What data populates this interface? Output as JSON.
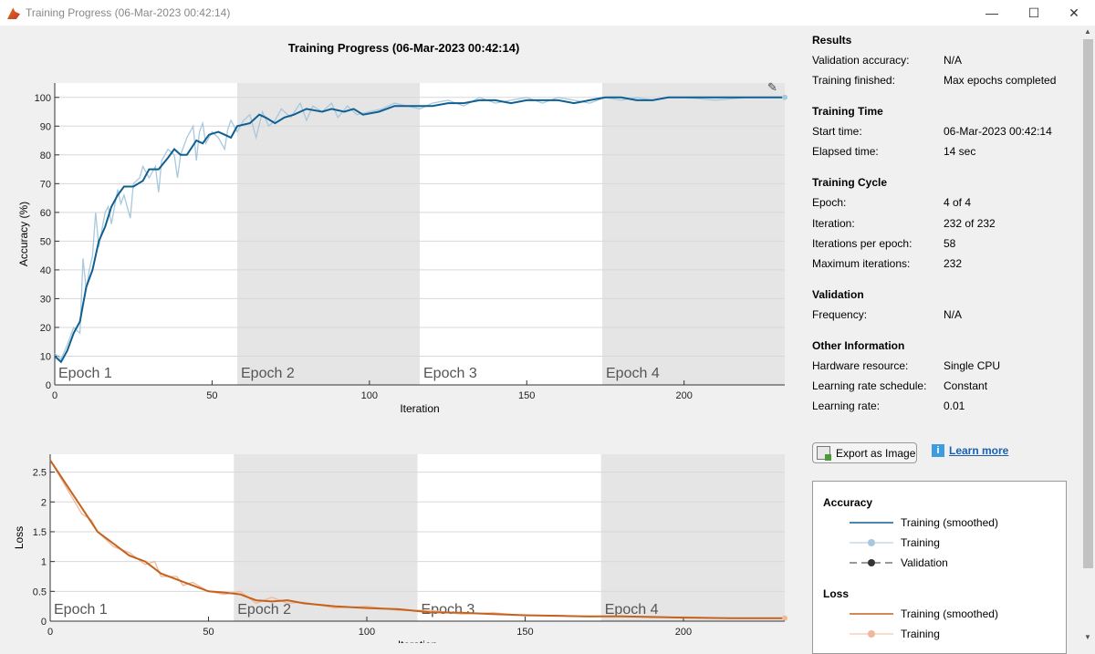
{
  "window": {
    "title": "Training Progress (06-Mar-2023 00:42:14)",
    "minimize": "—",
    "maximize": "☐",
    "close": "✕"
  },
  "chart_title": "Training Progress (06-Mar-2023 00:42:14)",
  "colors": {
    "acc_smoothed": "#0f5f92",
    "acc_raw": "#a8c8dc",
    "loss_smoothed": "#c4621e",
    "loss_raw": "#f0b89a",
    "epoch_shade": "#e5e5e5"
  },
  "chart_data": [
    {
      "type": "line",
      "ylabel": "Accuracy (%)",
      "xlabel": "Iteration",
      "xlim": [
        0,
        232
      ],
      "ylim": [
        0,
        105
      ],
      "xticks": [
        0,
        50,
        100,
        150,
        200
      ],
      "yticks": [
        0,
        10,
        20,
        30,
        40,
        50,
        60,
        70,
        80,
        90,
        100
      ],
      "grid": true,
      "epochs": [
        {
          "label": "Epoch 1",
          "start": 0,
          "end": 58
        },
        {
          "label": "Epoch 2",
          "start": 58,
          "end": 116
        },
        {
          "label": "Epoch 3",
          "start": 116,
          "end": 174
        },
        {
          "label": "Epoch 4",
          "start": 174,
          "end": 232
        }
      ],
      "series": [
        {
          "name": "Training (smoothed)",
          "x": [
            0,
            2,
            4,
            6,
            8,
            10,
            12,
            14,
            16,
            18,
            20,
            22,
            25,
            28,
            30,
            33,
            36,
            38,
            40,
            42,
            45,
            47,
            49,
            52,
            54,
            56,
            58,
            62,
            65,
            67,
            70,
            73,
            76,
            80,
            85,
            88,
            92,
            95,
            98,
            103,
            108,
            112,
            116,
            120,
            125,
            130,
            135,
            140,
            145,
            150,
            155,
            160,
            165,
            170,
            175,
            180,
            185,
            190,
            195,
            200,
            210,
            220,
            232
          ],
          "y": [
            10,
            8,
            12,
            18,
            22,
            34,
            40,
            50,
            55,
            62,
            66,
            69,
            69,
            71,
            75,
            75,
            79,
            82,
            80,
            80,
            85,
            84,
            87,
            88,
            87,
            86,
            90,
            91,
            94,
            93,
            91,
            93,
            94,
            96,
            95,
            96,
            95,
            96,
            94,
            95,
            97,
            97,
            97,
            97,
            98,
            98,
            99,
            99,
            98,
            99,
            99,
            99,
            98,
            99,
            100,
            100,
            99,
            99,
            100,
            100,
            100,
            100,
            100
          ]
        },
        {
          "name": "Training",
          "x": [
            0,
            2,
            4,
            6,
            8,
            9,
            10,
            11,
            12,
            13,
            14,
            15,
            16,
            17,
            18,
            20,
            21,
            22,
            24,
            25,
            27,
            28,
            30,
            32,
            33,
            34,
            36,
            38,
            39,
            40,
            42,
            44,
            45,
            46,
            47,
            48,
            50,
            52,
            54,
            55,
            56,
            58,
            60,
            62,
            64,
            66,
            68,
            70,
            72,
            75,
            78,
            80,
            82,
            85,
            88,
            90,
            93,
            96,
            100,
            104,
            108,
            112,
            116,
            120,
            125,
            130,
            135,
            140,
            145,
            150,
            155,
            160,
            165,
            170,
            175,
            180,
            185,
            190,
            195,
            200,
            210,
            220,
            232
          ],
          "y": [
            11,
            9,
            14,
            20,
            18,
            44,
            33,
            40,
            45,
            60,
            48,
            54,
            60,
            62,
            56,
            68,
            63,
            66,
            58,
            70,
            72,
            76,
            72,
            76,
            67,
            78,
            82,
            80,
            72,
            80,
            86,
            90,
            78,
            88,
            91,
            84,
            88,
            86,
            82,
            89,
            92,
            88,
            92,
            94,
            86,
            95,
            90,
            92,
            96,
            93,
            98,
            92,
            97,
            95,
            98,
            93,
            97,
            94,
            95,
            96,
            98,
            97,
            96,
            98,
            99,
            97,
            100,
            98,
            99,
            100,
            98,
            100,
            99,
            98,
            100,
            99,
            100,
            99,
            100,
            100,
            99,
            100,
            100
          ]
        }
      ]
    },
    {
      "type": "line",
      "ylabel": "Loss",
      "xlabel": "Iteration",
      "xlim": [
        0,
        232
      ],
      "ylim": [
        0,
        2.8
      ],
      "xticks": [
        0,
        50,
        100,
        150,
        200
      ],
      "yticks": [
        0,
        0.5,
        1,
        1.5,
        2,
        2.5
      ],
      "grid": true,
      "epochs": [
        {
          "label": "Epoch 1",
          "start": 0,
          "end": 58
        },
        {
          "label": "Epoch 2",
          "start": 58,
          "end": 116
        },
        {
          "label": "Epoch 3",
          "start": 116,
          "end": 174
        },
        {
          "label": "Epoch 4",
          "start": 174,
          "end": 232
        }
      ],
      "series": [
        {
          "name": "Training (smoothed)",
          "x": [
            0,
            5,
            10,
            15,
            20,
            25,
            30,
            35,
            40,
            45,
            50,
            55,
            60,
            65,
            70,
            75,
            80,
            90,
            100,
            110,
            120,
            130,
            140,
            150,
            160,
            170,
            180,
            190,
            200,
            215,
            232
          ],
          "y": [
            2.7,
            2.3,
            1.9,
            1.5,
            1.3,
            1.1,
            1.0,
            0.8,
            0.7,
            0.6,
            0.5,
            0.48,
            0.45,
            0.35,
            0.33,
            0.35,
            0.3,
            0.25,
            0.22,
            0.2,
            0.15,
            0.14,
            0.12,
            0.1,
            0.09,
            0.08,
            0.08,
            0.07,
            0.06,
            0.05,
            0.05
          ]
        },
        {
          "name": "Training",
          "x": [
            0,
            5,
            10,
            13,
            15,
            20,
            25,
            30,
            33,
            35,
            40,
            42,
            45,
            50,
            55,
            60,
            65,
            70,
            75,
            80,
            90,
            100,
            110,
            120,
            130,
            140,
            150,
            160,
            170,
            180,
            190,
            200,
            215,
            232
          ],
          "y": [
            2.7,
            2.25,
            1.8,
            1.7,
            1.5,
            1.25,
            1.15,
            0.95,
            1.0,
            0.75,
            0.75,
            0.6,
            0.65,
            0.5,
            0.45,
            0.5,
            0.3,
            0.4,
            0.3,
            0.32,
            0.22,
            0.25,
            0.18,
            0.18,
            0.12,
            0.14,
            0.09,
            0.1,
            0.07,
            0.09,
            0.06,
            0.07,
            0.05,
            0.05
          ]
        }
      ]
    }
  ],
  "panel": {
    "results": {
      "heading": "Results",
      "rows": [
        {
          "label": "Validation accuracy:",
          "value": "N/A"
        },
        {
          "label": "Training finished:",
          "value": "Max epochs completed"
        }
      ]
    },
    "time": {
      "heading": "Training Time",
      "rows": [
        {
          "label": "Start time:",
          "value": "06-Mar-2023 00:42:14"
        },
        {
          "label": "Elapsed time:",
          "value": "14 sec"
        }
      ]
    },
    "cycle": {
      "heading": "Training Cycle",
      "rows": [
        {
          "label": "Epoch:",
          "value": "4 of 4"
        },
        {
          "label": "Iteration:",
          "value": "232 of 232"
        },
        {
          "label": "Iterations per epoch:",
          "value": "58"
        },
        {
          "label": "Maximum iterations:",
          "value": "232"
        }
      ]
    },
    "validation": {
      "heading": "Validation",
      "rows": [
        {
          "label": "Frequency:",
          "value": "N/A"
        }
      ]
    },
    "other": {
      "heading": "Other Information",
      "rows": [
        {
          "label": "Hardware resource:",
          "value": "Single CPU"
        },
        {
          "label": "Learning rate schedule:",
          "value": "Constant"
        },
        {
          "label": "Learning rate:",
          "value": "0.01"
        }
      ]
    },
    "export_label": "Export as Image",
    "learn_more": "Learn more"
  },
  "legend": {
    "accuracy": {
      "heading": "Accuracy",
      "items": [
        "Training (smoothed)",
        "Training",
        "Validation"
      ]
    },
    "loss": {
      "heading": "Loss",
      "items": [
        "Training (smoothed)",
        "Training"
      ]
    }
  }
}
